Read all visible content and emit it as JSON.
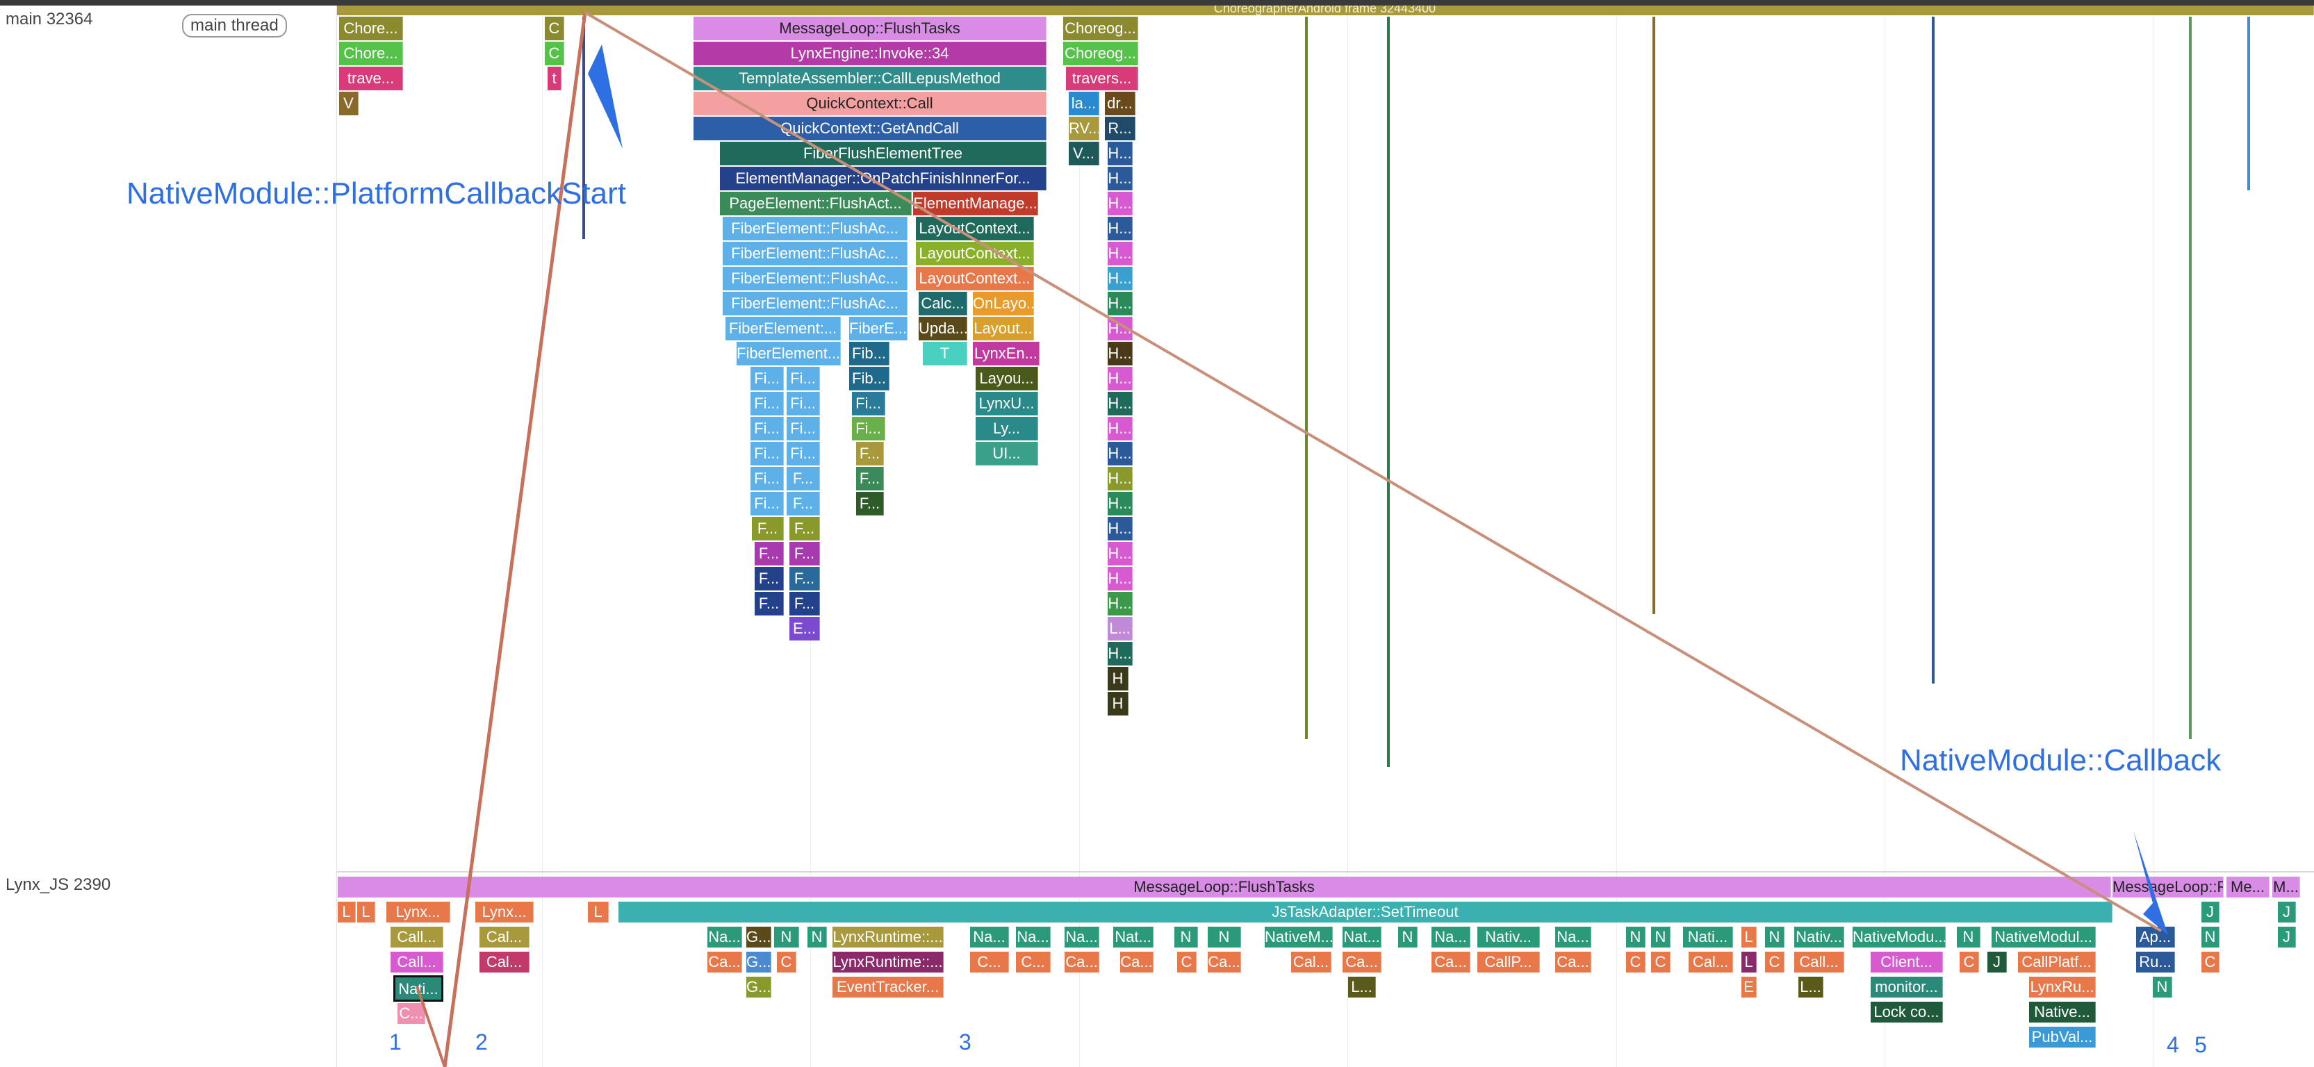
{
  "tracks": {
    "main": {
      "name": "main 32364",
      "chip": "main thread"
    },
    "js": {
      "name": "Lynx_JS 2390"
    }
  },
  "top_cut_label": "ChoreographerAndroid frame 32443400",
  "main_slices": {
    "chore1": "Chore...",
    "chore2": "Chore...",
    "trave": "trave...",
    "v": "V",
    "c1": "C",
    "c2": "C",
    "t": "t",
    "flush": "MessageLoop::FlushTasks",
    "invoke": "LynxEngine::Invoke::34",
    "template": "TemplateAssembler::CallLepusMethod",
    "qcall": "QuickContext::Call",
    "qget": "QuickContext::GetAndCall",
    "fiberflush": "FiberFlushElementTree",
    "elemmgr": "ElementManager::OnPatchFinishInnerFor...",
    "pageelem": "PageElement::FlushAct...",
    "elemmanage": "ElementManage...",
    "fe1": "FiberElement::FlushAc...",
    "fe2": "FiberElement::FlushAc...",
    "fe3": "FiberElement::FlushAc...",
    "fe4": "FiberElement::FlushAc...",
    "fe5": "FiberElement:...",
    "fe6": "FiberElement...",
    "fibe": "FiberE...",
    "fib1": "Fib...",
    "fib2": "Fib...",
    "layctx1": "LayoutContext...",
    "layctx2": "LayoutContext...",
    "layctx3": "LayoutContext...",
    "calc": "Calc...",
    "onlayo": "OnLayo...",
    "upda": "Upda...",
    "layout": "Layout...",
    "tslice": "T",
    "lynxen": "LynxEn...",
    "layou": "Layou...",
    "lynxu": "LynxU...",
    "ly": "Ly...",
    "ui": "UI...",
    "fi": "Fi...",
    "fsm": "F...",
    "fc": "F",
    "esm": "E...",
    "choreog1": "Choreog...",
    "choreog2": "Choreog...",
    "travers": "travers...",
    "la": "la...",
    "dr": "dr...",
    "rv": "RV...",
    "r": "R...",
    "vv": "V...",
    "h": "H...",
    "hh": "H",
    "l": "L..."
  },
  "js_slices": {
    "flush": "MessageLoop::FlushTasks",
    "settimeout": "JsTaskAdapter::SetTimeout",
    "l": "L",
    "lynx1": "Lynx...",
    "lynx2": "Lynx...",
    "call1": "Call...",
    "cal1": "Cal...",
    "cal2": "Cal...",
    "call2": "Call...",
    "nati1": "Nati...",
    "c1": "C...",
    "na": "Na...",
    "g": "G...",
    "n": "N",
    "ca": "Ca...",
    "c": "C",
    "lynxrt1": "LynxRuntime::...",
    "lynxrt2": "LynxRuntime::...",
    "evt": "EventTracker...",
    "nativem": "NativeM...",
    "nat": "Nat...",
    "nativ": "Nativ...",
    "callp": "CallP...",
    "l2": "L...",
    "e": "E",
    "client": "Client...",
    "monitor": "monitor...",
    "lockco": "Lock co...",
    "nativemodu": "NativeModu...",
    "nativemodul": "NativeModul...",
    "callplatf": "CallPlatf...",
    "lynxru": "LynxRu...",
    "native": "Native...",
    "pubval": "PubVal...",
    "flush2": "MessageLoop::F...",
    "ap": "Ap...",
    "ru": "Ru...",
    "j": "J",
    "me": "Me...",
    "m": "M..."
  },
  "annotations": {
    "start": "NativeModule::PlatformCallbackStart",
    "callback": "NativeModule::Callback"
  },
  "markers": [
    "1",
    "2",
    "3",
    "4",
    "5"
  ],
  "colors": {
    "annotation_blue": "#2f6fe4",
    "flow_line": "#c8705a",
    "flush_purple": "#d88ce6",
    "frame_olive": "#a89a3c"
  }
}
